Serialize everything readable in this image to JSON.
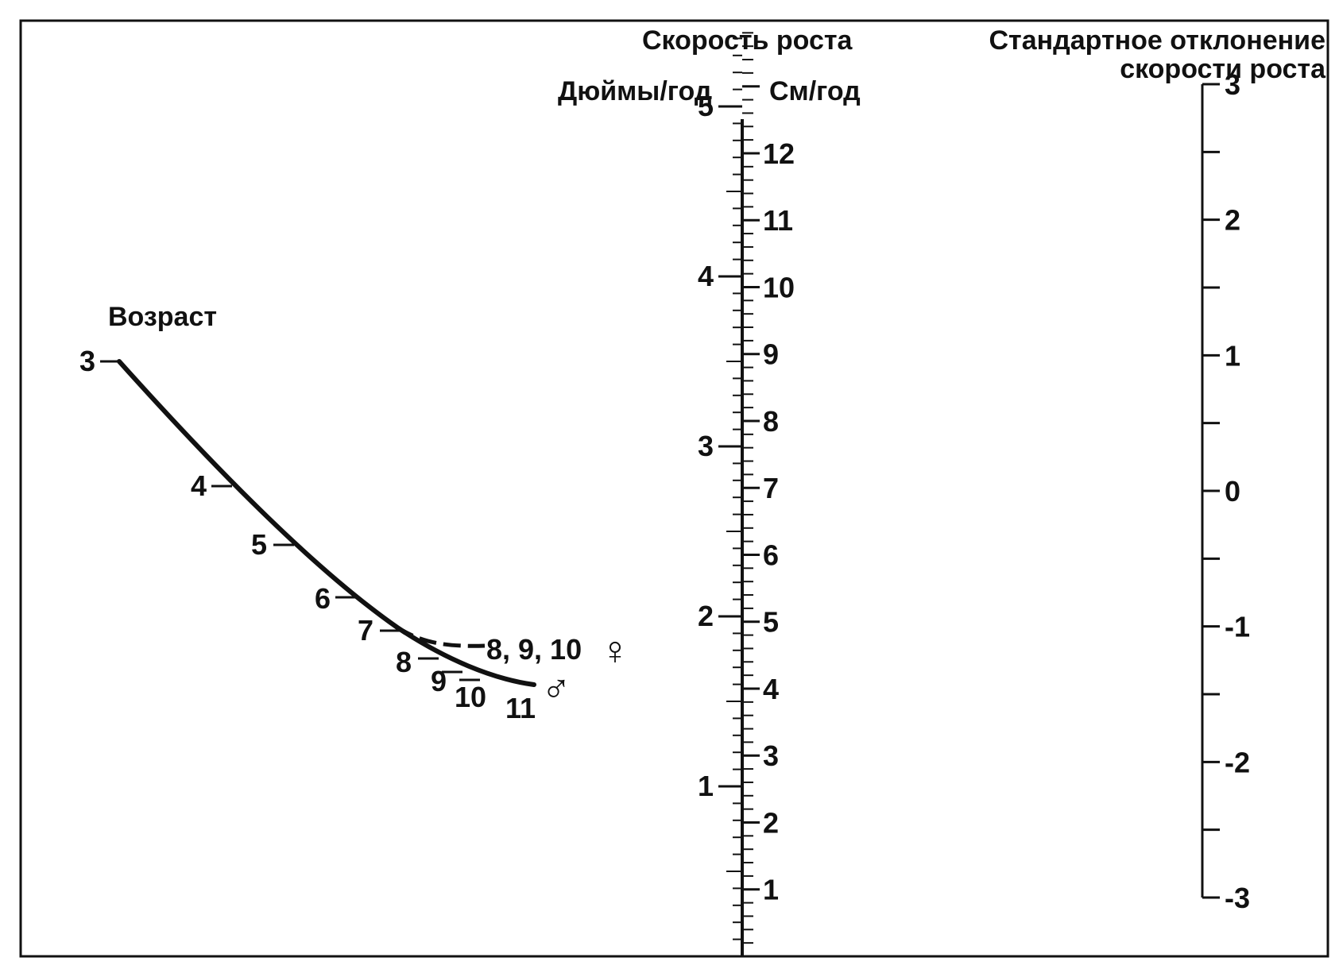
{
  "titles": {
    "velocity": "Скорость роста",
    "sd_line1": "Стандартное отклонение",
    "sd_line2": "скорости роста",
    "inches_unit": "Дюймы/год",
    "cm_unit": "См/год",
    "age": "Возраст"
  },
  "inch_scale": {
    "labels": [
      "1",
      "2",
      "3",
      "4",
      "5"
    ],
    "max": 5.4
  },
  "cm_scale": {
    "labels": [
      "1",
      "2",
      "3",
      "4",
      "5",
      "6",
      "7",
      "8",
      "9",
      "10",
      "11",
      "12"
    ],
    "max": 13.75
  },
  "sd_scale": {
    "labels": [
      "3",
      "2",
      "1",
      "0",
      "-1",
      "-2",
      "-3"
    ],
    "range": [
      -3,
      3
    ]
  },
  "age_scale": {
    "ticks": [
      "3",
      "4",
      "5",
      "6",
      "7",
      "8",
      "9",
      "10",
      "11"
    ],
    "girls_label": "8, 9, 10",
    "female_symbol": "♀",
    "male_symbol": "♂"
  },
  "colors": {
    "ink": "#111111",
    "background": "#ffffff"
  }
}
